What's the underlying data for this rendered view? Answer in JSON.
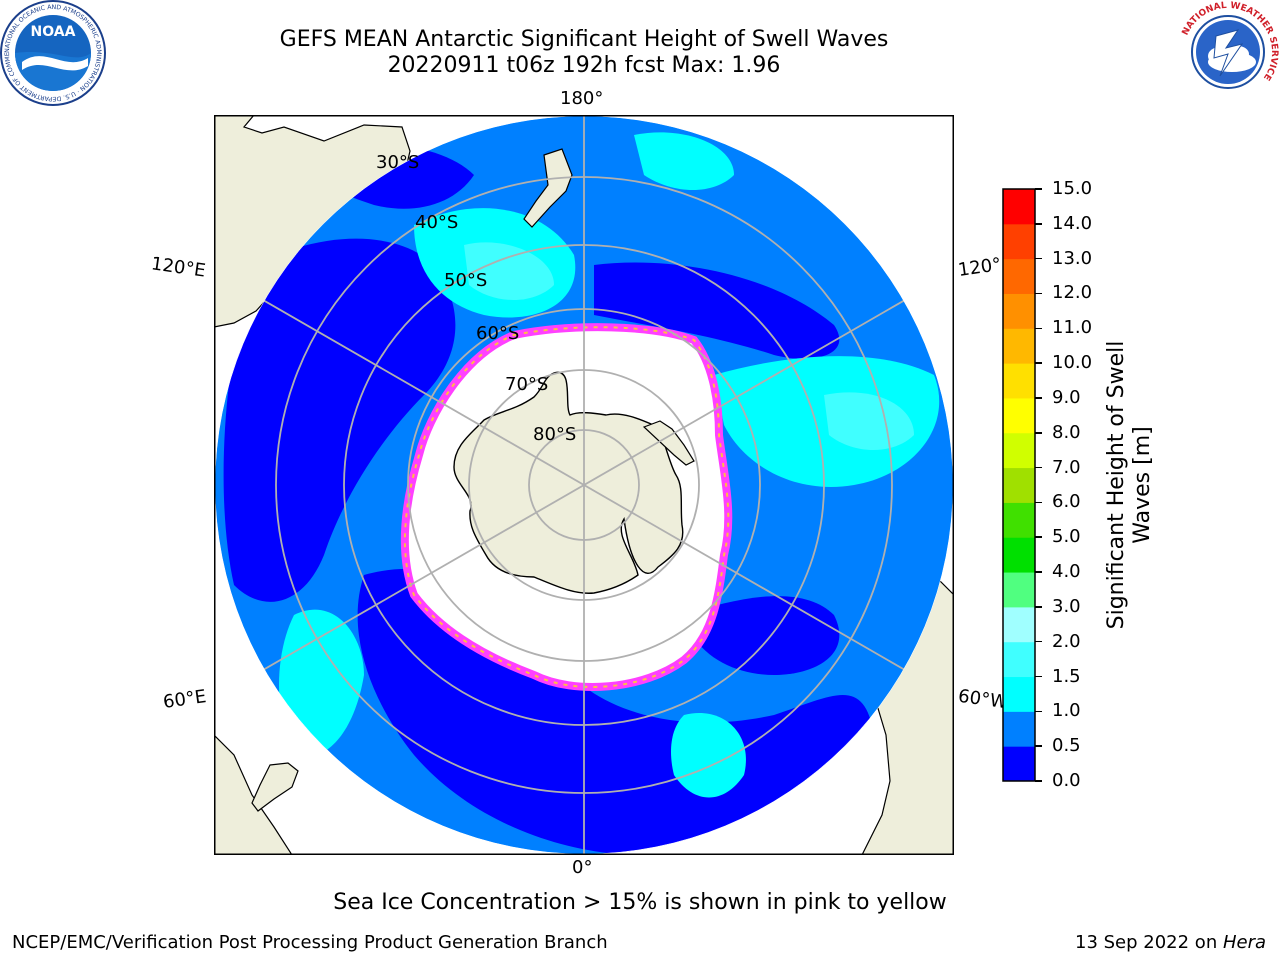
{
  "title": {
    "line1": "GEFS MEAN Antarctic Significant Height of Swell Waves",
    "line2": "20220911 t06z 192h fcst   Max: 1.96"
  },
  "map": {
    "projection": "south-polar-stereographic",
    "longitude_labels": {
      "top": "180°",
      "bottom": "0°",
      "left_upper": "120°E",
      "left_lower": "60°E",
      "right_upper": "120°",
      "right_lower": "60°W"
    },
    "latitude_labels": [
      "30°S",
      "40°S",
      "50°S",
      "60°S",
      "70°S",
      "80°S"
    ],
    "colors": {
      "land": "#eeeedb",
      "ocean_low": "#0000ff",
      "ocean_mid": "#0080ff",
      "ocean_high": "#00ffff",
      "ocean_higher": "#40ffff",
      "ice_edge_pink": "#ff40ff",
      "ice_edge_yellow": "#ffc040",
      "grid": "#b0b0b0"
    }
  },
  "colorbar": {
    "label": "Significant Height of Swell Waves [m]",
    "label_line1": "Significant Height of Swell",
    "label_line2": "Waves [m]",
    "ticks": [
      "0.0",
      "0.5",
      "1.0",
      "1.5",
      "2.0",
      "3.0",
      "4.0",
      "5.0",
      "6.0",
      "7.0",
      "8.0",
      "9.0",
      "10.0",
      "11.0",
      "12.0",
      "13.0",
      "14.0",
      "15.0"
    ],
    "colors": [
      "#0000ff",
      "#0080ff",
      "#00ffff",
      "#40ffff",
      "#a0ffff",
      "#50ff80",
      "#00e000",
      "#40e000",
      "#a0e000",
      "#d0ff00",
      "#ffff00",
      "#ffe000",
      "#ffb800",
      "#ff9000",
      "#ff6800",
      "#ff4000",
      "#ff0000"
    ]
  },
  "caption": "Sea Ice Concentration > 15% is shown in pink to yellow",
  "footer": {
    "left": "NCEP/EMC/Verification Post Processing Product Generation Branch",
    "right_prefix": "13 Sep 2022 on ",
    "right_machine": "Hera"
  },
  "logos": {
    "left": "NOAA",
    "left_ring": "NATIONAL OCEANIC AND ATMOSPHERIC ADMINISTRATION · U.S. DEPARTMENT OF COMMERCE",
    "right_ring": "NATIONAL WEATHER SERVICE"
  }
}
